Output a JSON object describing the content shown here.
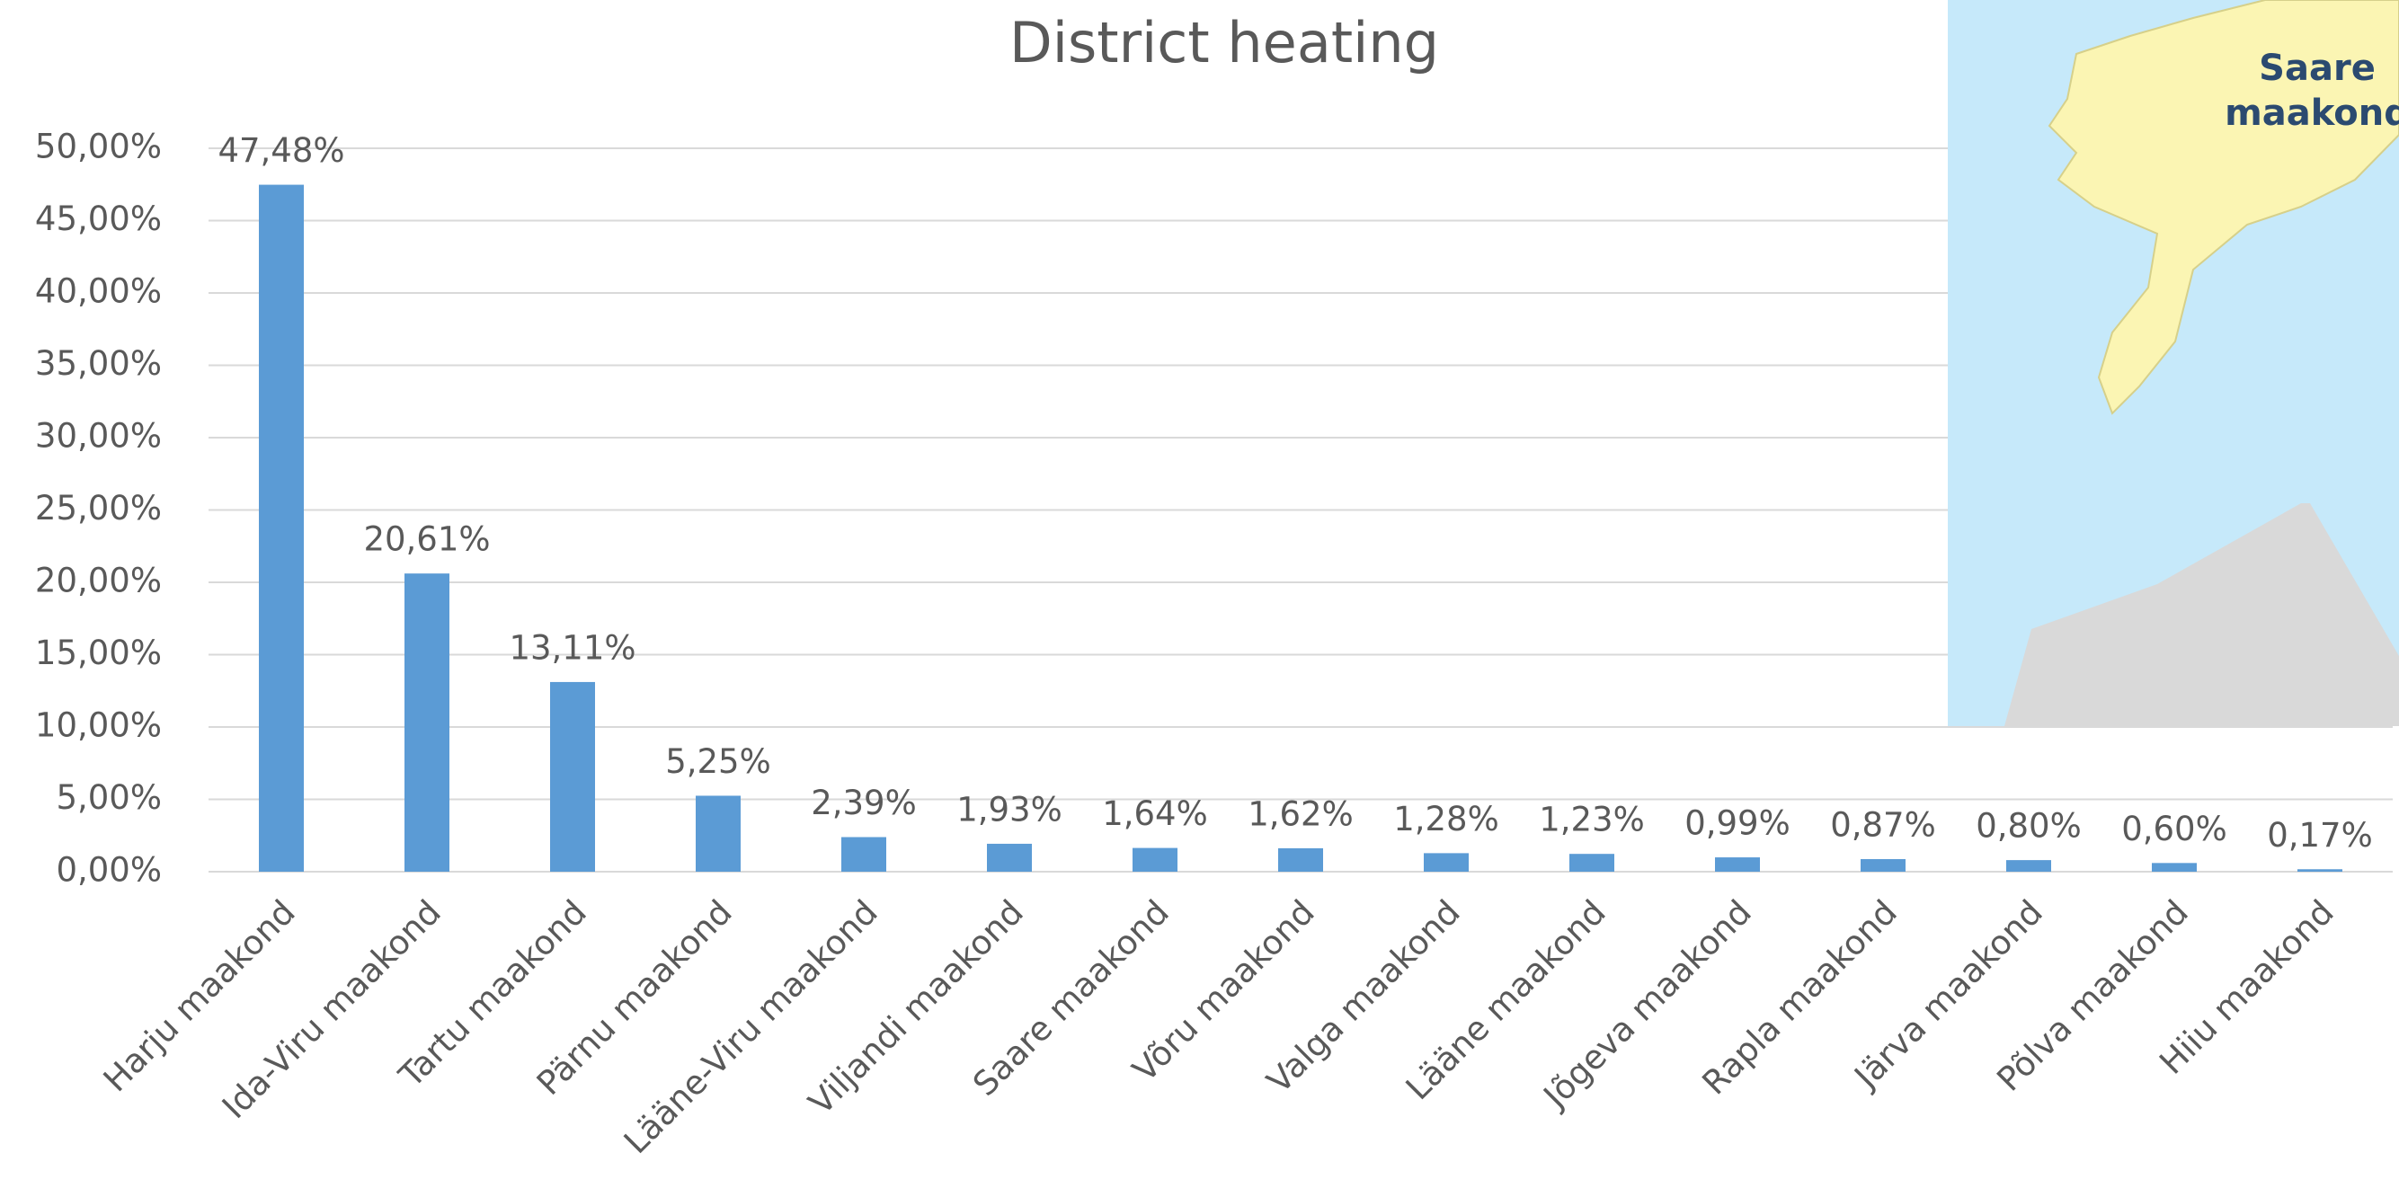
{
  "chart_data": {
    "type": "bar",
    "title": "District heating",
    "categories": [
      "Harju maakond",
      "Ida-Viru maakond",
      "Tartu maakond",
      "Pärnu maakond",
      "Lääne-Viru maakond",
      "Viljandi maakond",
      "Saare maakond",
      "Võru maakond",
      "Valga maakond",
      "Lääne maakond",
      "Jõgeva maakond",
      "Rapla maakond",
      "Järva maakond",
      "Põlva maakond",
      "Hiiu maakond"
    ],
    "values": [
      47.48,
      20.61,
      13.11,
      5.25,
      2.39,
      1.93,
      1.64,
      1.62,
      1.28,
      1.23,
      0.99,
      0.87,
      0.8,
      0.6,
      0.17
    ],
    "value_labels": [
      "47,48%",
      "20,61%",
      "13,11%",
      "5,25%",
      "2,39%",
      "1,93%",
      "1,64%",
      "1,62%",
      "1,28%",
      "1,23%",
      "0,99%",
      "0,87%",
      "0,80%",
      "0,60%",
      "0,17%"
    ],
    "color": "#5b9bd5",
    "ylim": [
      0,
      50
    ],
    "yticks": [
      {
        "value": 0,
        "label": "0,00%"
      },
      {
        "value": 5,
        "label": "5,00%"
      },
      {
        "value": 10,
        "label": "10,00%"
      },
      {
        "value": 15,
        "label": "15,00%"
      },
      {
        "value": 20,
        "label": "20,00%"
      },
      {
        "value": 25,
        "label": "25,00%"
      },
      {
        "value": 30,
        "label": "30,00%"
      },
      {
        "value": 35,
        "label": "35,00%"
      },
      {
        "value": 40,
        "label": "40,00%"
      },
      {
        "value": 45,
        "label": "45,00%"
      },
      {
        "value": 50,
        "label": "50,00%"
      }
    ],
    "grid": true
  },
  "map_inset": {
    "label_lines": [
      "Saare",
      "maakond"
    ]
  }
}
